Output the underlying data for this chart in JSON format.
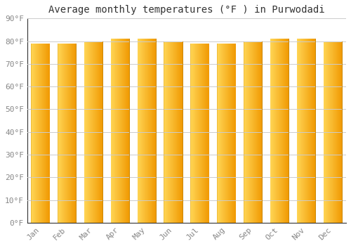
{
  "title": "Average monthly temperatures (°F ) in Purwodadi",
  "months": [
    "Jan",
    "Feb",
    "Mar",
    "Apr",
    "May",
    "Jun",
    "Jul",
    "Aug",
    "Sep",
    "Oct",
    "Nov",
    "Dec"
  ],
  "values": [
    79,
    79,
    80,
    81,
    81,
    80,
    79,
    79,
    80,
    81,
    81,
    80
  ],
  "ylim": [
    0,
    90
  ],
  "yticks": [
    0,
    10,
    20,
    30,
    40,
    50,
    60,
    70,
    80,
    90
  ],
  "ytick_labels": [
    "0°F",
    "10°F",
    "20°F",
    "30°F",
    "40°F",
    "50°F",
    "60°F",
    "70°F",
    "80°F",
    "90°F"
  ],
  "bar_color_left": "#FFD060",
  "bar_color_right": "#F5A000",
  "bar_edge_color": "#CC8800",
  "background_color": "#FFFFFF",
  "plot_bg_color": "#FFFFFF",
  "grid_color": "#CCCCCC",
  "title_fontsize": 10,
  "tick_fontsize": 8,
  "title_color": "#333333",
  "tick_color": "#888888",
  "bar_width": 0.72,
  "gap_color": "#FFFFFF"
}
